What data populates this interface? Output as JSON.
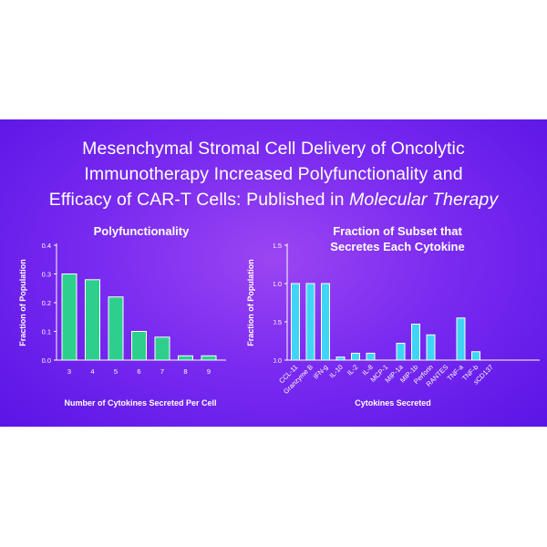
{
  "headline": {
    "line1": "Mesenchymal Stromal Cell Delivery of Oncolytic",
    "line2": "Immunotherapy Increased Polyfunctionality and",
    "line3_main": "Efficacy of CAR-T Cells: Published in ",
    "line3_italic": "Molecular Therapy"
  },
  "colors": {
    "background_start": "#9b45f2",
    "background_end": "#5a14e6",
    "left_bar_fill": "#2ecf8c",
    "right_bar_fill": "#3fd6f5",
    "text": "#ffffff"
  },
  "chart_data": [
    {
      "type": "bar",
      "title": "Polyfunctionality",
      "xlabel": "Number of Cytokines Secreted Per Cell",
      "ylabel": "Fraction of Population",
      "categories": [
        "3",
        "4",
        "5",
        "6",
        "7",
        "8",
        "9"
      ],
      "values": [
        0.3,
        0.28,
        0.22,
        0.1,
        0.08,
        0.015,
        0.015
      ],
      "ylim": [
        0,
        0.4
      ],
      "yticks": [
        "0.0",
        "0.1",
        "0.2",
        "0.3",
        "0.4"
      ],
      "grid": false
    },
    {
      "type": "bar",
      "title": "Fraction of Subset that Secretes Each Cytokine",
      "title_lines": [
        "Fraction of Subset that",
        "Secretes Each Cytokine"
      ],
      "xlabel": "Cytokines Secreted",
      "ylabel": "Fraction of Population",
      "categories": [
        "CCL-11",
        "Granzyme B",
        "IFN-g",
        "IL-10",
        "IL-2",
        "IL-8",
        "MCP-1",
        "MIP-1a",
        "MIP-1b",
        "Perforin",
        "RANTES",
        "TNF-a",
        "TNF-b",
        "sCD137"
      ],
      "values": [
        1.0,
        1.0,
        1.0,
        0.04,
        0.09,
        0.09,
        0.0,
        0.22,
        0.47,
        0.33,
        0.0,
        0.55,
        0.11,
        0.0
      ],
      "ylim": [
        0,
        1.5
      ],
      "yticks": [
        "0.0",
        "0.5",
        "1.0",
        "1.5"
      ],
      "grid": false
    }
  ]
}
